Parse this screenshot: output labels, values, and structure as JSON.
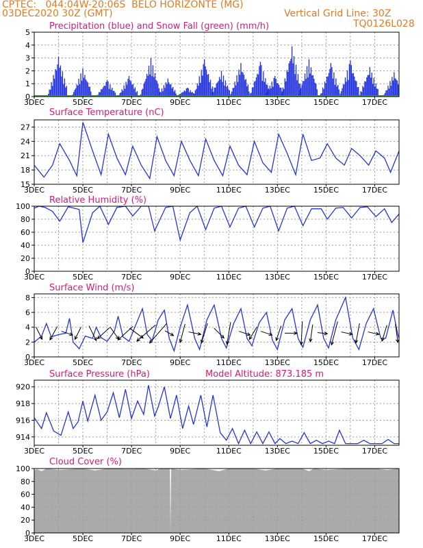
{
  "header": {
    "line1": "CPTEC:   044:04W-20:06S  BELO HORIZONTE (MG)",
    "line2": "03DEC2020 30Z (GMT)",
    "grid_note": "Vertical Grid Line: 30Z",
    "code": "TQ0126L028"
  },
  "colors": {
    "header": "#e07b1f",
    "panel_title": "#e0157a",
    "line": "#2233dd",
    "precip_bar": "#2233dd",
    "snow": "#22aa22",
    "cloud": "#aaaaaa",
    "arrow": "#000000"
  },
  "chart_data": [
    {
      "id": "precip",
      "type": "bar",
      "title": "Precipitation (blue) and Snow Fall (green) (mm/h)",
      "ylim": [
        0,
        5
      ],
      "yticks": [
        "0",
        "1",
        "2",
        "3",
        "4",
        "5"
      ],
      "grid": true,
      "x_days": [
        3,
        18
      ],
      "x_tick_labels": [
        "3DEC",
        "5DEC",
        "7DEC",
        "9DEC",
        "11DEC",
        "13DEC",
        "15DEC",
        "17DEC"
      ],
      "daily_peaks": [
        {
          "day": 4.0,
          "value": 3.1
        },
        {
          "day": 5.0,
          "value": 2.2
        },
        {
          "day": 6.0,
          "value": 1.3
        },
        {
          "day": 6.9,
          "value": 1.6
        },
        {
          "day": 7.8,
          "value": 3.0
        },
        {
          "day": 8.5,
          "value": 1.4
        },
        {
          "day": 9.3,
          "value": 0.7
        },
        {
          "day": 10.0,
          "value": 2.9
        },
        {
          "day": 10.7,
          "value": 2.0
        },
        {
          "day": 11.5,
          "value": 2.6
        },
        {
          "day": 12.3,
          "value": 2.7
        },
        {
          "day": 12.9,
          "value": 1.6
        },
        {
          "day": 13.6,
          "value": 3.9
        },
        {
          "day": 14.3,
          "value": 2.9
        },
        {
          "day": 15.2,
          "value": 2.6
        },
        {
          "day": 16.0,
          "value": 2.8
        },
        {
          "day": 16.8,
          "value": 2.3
        },
        {
          "day": 17.8,
          "value": 1.9
        }
      ],
      "snow_values": 0
    },
    {
      "id": "temperature",
      "type": "line",
      "title": "Surface Temperature (nC)",
      "ylim": [
        15,
        28.5
      ],
      "yticks": [
        "15",
        "18",
        "21",
        "24",
        "27"
      ],
      "grid": true,
      "x_days": [
        3,
        18
      ],
      "x_tick_labels": [
        "3DEC",
        "5DEC",
        "7DEC",
        "9DEC",
        "11DEC",
        "13DEC",
        "15DEC",
        "17DEC"
      ],
      "points": [
        [
          3.0,
          19.0
        ],
        [
          3.4,
          16.5
        ],
        [
          3.75,
          19.0
        ],
        [
          4.05,
          23.5
        ],
        [
          4.45,
          20.0
        ],
        [
          4.75,
          16.8
        ],
        [
          5.0,
          28.0
        ],
        [
          5.4,
          22.0
        ],
        [
          5.75,
          17.0
        ],
        [
          6.05,
          25.5
        ],
        [
          6.4,
          20.5
        ],
        [
          6.75,
          17.0
        ],
        [
          7.05,
          23.0
        ],
        [
          7.4,
          19.0
        ],
        [
          7.75,
          16.2
        ],
        [
          8.05,
          25.0
        ],
        [
          8.4,
          20.0
        ],
        [
          8.75,
          16.8
        ],
        [
          9.05,
          24.0
        ],
        [
          9.4,
          20.0
        ],
        [
          9.75,
          16.8
        ],
        [
          10.05,
          24.5
        ],
        [
          10.4,
          20.0
        ],
        [
          10.75,
          16.8
        ],
        [
          11.05,
          23.0
        ],
        [
          11.4,
          19.0
        ],
        [
          11.75,
          17.0
        ],
        [
          12.05,
          24.0
        ],
        [
          12.4,
          19.5
        ],
        [
          12.75,
          17.5
        ],
        [
          13.05,
          25.5
        ],
        [
          13.4,
          21.5
        ],
        [
          13.75,
          17.0
        ],
        [
          14.05,
          25.5
        ],
        [
          14.4,
          20.0
        ],
        [
          14.75,
          20.5
        ],
        [
          15.05,
          23.5
        ],
        [
          15.4,
          20.5
        ],
        [
          15.75,
          19.0
        ],
        [
          16.05,
          22.5
        ],
        [
          16.4,
          21.0
        ],
        [
          16.75,
          19.0
        ],
        [
          17.05,
          22.0
        ],
        [
          17.4,
          20.5
        ],
        [
          17.65,
          17.5
        ],
        [
          18.0,
          22.0
        ]
      ]
    },
    {
      "id": "humidity",
      "type": "line",
      "title": "Relative Humidity (%)",
      "ylim": [
        0,
        100
      ],
      "yticks": [
        "0",
        "20",
        "40",
        "60",
        "80",
        "100"
      ],
      "grid": true,
      "x_days": [
        3,
        18
      ],
      "x_tick_labels": [
        "3DEC",
        "5DEC",
        "7DEC",
        "9DEC",
        "11DEC",
        "13DEC",
        "15DEC",
        "17DEC"
      ],
      "points": [
        [
          3.0,
          97
        ],
        [
          3.2,
          100
        ],
        [
          3.45,
          98
        ],
        [
          3.75,
          92
        ],
        [
          4.05,
          77
        ],
        [
          4.4,
          99
        ],
        [
          4.85,
          95
        ],
        [
          5.0,
          44
        ],
        [
          5.4,
          90
        ],
        [
          5.7,
          100
        ],
        [
          6.05,
          72
        ],
        [
          6.4,
          98
        ],
        [
          6.75,
          100
        ],
        [
          7.05,
          85
        ],
        [
          7.4,
          100
        ],
        [
          7.7,
          100
        ],
        [
          7.95,
          62
        ],
        [
          8.4,
          98
        ],
        [
          8.7,
          100
        ],
        [
          9.0,
          48
        ],
        [
          9.4,
          90
        ],
        [
          9.7,
          100
        ],
        [
          10.05,
          64
        ],
        [
          10.4,
          97
        ],
        [
          10.7,
          100
        ],
        [
          11.05,
          68
        ],
        [
          11.4,
          97
        ],
        [
          11.7,
          100
        ],
        [
          12.05,
          68
        ],
        [
          12.4,
          97
        ],
        [
          12.7,
          100
        ],
        [
          13.05,
          62
        ],
        [
          13.4,
          97
        ],
        [
          13.7,
          100
        ],
        [
          14.05,
          70
        ],
        [
          14.4,
          96
        ],
        [
          14.8,
          96
        ],
        [
          15.05,
          80
        ],
        [
          15.4,
          97
        ],
        [
          15.7,
          98
        ],
        [
          16.05,
          82
        ],
        [
          16.4,
          98
        ],
        [
          16.7,
          99
        ],
        [
          17.05,
          84
        ],
        [
          17.4,
          96
        ],
        [
          17.7,
          75
        ],
        [
          18.0,
          88
        ]
      ]
    },
    {
      "id": "wind",
      "type": "line",
      "title": "Surface Wind (m/s)",
      "ylim": [
        0,
        8.5
      ],
      "yticks": [
        "0",
        "2",
        "4",
        "6",
        "8"
      ],
      "grid": true,
      "x_days": [
        3,
        18
      ],
      "x_tick_labels": [
        "3DEC",
        "5DEC",
        "7DEC",
        "9DEC",
        "11DEC",
        "13DEC",
        "15DEC",
        "17DEC"
      ],
      "points": [
        [
          3.0,
          2.0
        ],
        [
          3.3,
          2.8
        ],
        [
          3.5,
          4.5
        ],
        [
          3.7,
          2.7
        ],
        [
          4.0,
          3.0
        ],
        [
          4.3,
          3.2
        ],
        [
          4.45,
          5.2
        ],
        [
          4.6,
          2.0
        ],
        [
          4.85,
          1.1
        ],
        [
          5.1,
          2.8
        ],
        [
          5.4,
          2.5
        ],
        [
          5.55,
          4.0
        ],
        [
          5.75,
          2.6
        ],
        [
          6.0,
          2.1
        ],
        [
          6.3,
          3.5
        ],
        [
          6.45,
          5.5
        ],
        [
          6.65,
          2.7
        ],
        [
          6.9,
          2.1
        ],
        [
          7.2,
          4.5
        ],
        [
          7.45,
          6.5
        ],
        [
          7.65,
          3.0
        ],
        [
          7.85,
          2.2
        ],
        [
          8.1,
          5.0
        ],
        [
          8.35,
          6.3
        ],
        [
          8.55,
          2.5
        ],
        [
          8.75,
          0.8
        ],
        [
          9.0,
          4.0
        ],
        [
          9.3,
          7.0
        ],
        [
          9.6,
          2.5
        ],
        [
          9.8,
          1.0
        ],
        [
          10.1,
          5.0
        ],
        [
          10.4,
          7.0
        ],
        [
          10.7,
          2.5
        ],
        [
          10.9,
          1.2
        ],
        [
          11.2,
          4.5
        ],
        [
          11.5,
          6.5
        ],
        [
          11.75,
          2.5
        ],
        [
          11.95,
          1.5
        ],
        [
          12.25,
          4.6
        ],
        [
          12.55,
          6.0
        ],
        [
          12.8,
          2.2
        ],
        [
          13.0,
          1.0
        ],
        [
          13.3,
          5.0
        ],
        [
          13.6,
          6.5
        ],
        [
          13.85,
          2.5
        ],
        [
          14.05,
          1.3
        ],
        [
          14.35,
          5.0
        ],
        [
          14.65,
          7.0
        ],
        [
          14.9,
          2.5
        ],
        [
          15.1,
          1.2
        ],
        [
          15.4,
          5.0
        ],
        [
          15.8,
          8.0
        ],
        [
          16.1,
          2.5
        ],
        [
          16.35,
          1.0
        ],
        [
          16.65,
          4.5
        ],
        [
          16.95,
          6.5
        ],
        [
          17.25,
          2.5
        ],
        [
          17.45,
          2.5
        ],
        [
          17.75,
          6.3
        ],
        [
          17.95,
          3.0
        ],
        [
          18.0,
          2.5
        ]
      ],
      "arrows": [
        {
          "day": 3.2,
          "u": 0.5,
          "v": 1.0
        },
        {
          "day": 3.8,
          "u": -0.6,
          "v": 1.1
        },
        {
          "day": 4.35,
          "u": 0.9,
          "v": 0.3
        },
        {
          "day": 4.8,
          "u": -0.5,
          "v": 1.0
        },
        {
          "day": 5.4,
          "u": 0.6,
          "v": 1.2
        },
        {
          "day": 5.85,
          "u": -1.0,
          "v": 0.9
        },
        {
          "day": 6.3,
          "u": 0.7,
          "v": 1.0
        },
        {
          "day": 6.75,
          "u": -1.2,
          "v": 1.1
        },
        {
          "day": 7.2,
          "u": 1.1,
          "v": 0.8
        },
        {
          "day": 7.6,
          "u": -1.5,
          "v": 1.3
        },
        {
          "day": 8.1,
          "u": -1.4,
          "v": 1.6
        },
        {
          "day": 8.55,
          "u": 0.7,
          "v": 0.4
        },
        {
          "day": 9.1,
          "u": -0.4,
          "v": 1.5
        },
        {
          "day": 9.6,
          "u": 1.0,
          "v": 0.2
        },
        {
          "day": 10.0,
          "u": -0.5,
          "v": 1.6
        },
        {
          "day": 10.6,
          "u": 0.8,
          "v": 0.8
        },
        {
          "day": 11.0,
          "u": -0.3,
          "v": 1.8
        },
        {
          "day": 11.65,
          "u": 0.9,
          "v": 0.3
        },
        {
          "day": 12.0,
          "u": -0.6,
          "v": 1.0
        },
        {
          "day": 12.55,
          "u": 0.9,
          "v": 0.3
        },
        {
          "day": 13.05,
          "u": -0.4,
          "v": 1.2
        },
        {
          "day": 13.55,
          "u": 1.0,
          "v": 0.0
        },
        {
          "day": 14.0,
          "u": -0.1,
          "v": 1.9
        },
        {
          "day": 14.4,
          "u": -0.2,
          "v": 1.4
        },
        {
          "day": 14.85,
          "u": 0.8,
          "v": 0.1
        },
        {
          "day": 15.35,
          "u": -0.5,
          "v": 1.9
        },
        {
          "day": 15.85,
          "u": 0.9,
          "v": 0.2
        },
        {
          "day": 16.3,
          "u": -0.3,
          "v": 1.6
        },
        {
          "day": 16.95,
          "u": 0.9,
          "v": 0.2
        },
        {
          "day": 17.4,
          "u": -0.4,
          "v": 1.3
        },
        {
          "day": 17.9,
          "u": 0.2,
          "v": 1.5
        }
      ]
    },
    {
      "id": "pressure",
      "type": "line",
      "title": "Surface Pressure (hPa)",
      "subtitle": "Model Altitude: 873.185 m",
      "ylim": [
        913,
        920.8
      ],
      "yticks": [
        "914",
        "916",
        "918",
        "920"
      ],
      "grid": true,
      "x_days": [
        3,
        18
      ],
      "x_tick_labels": [
        "3DEC",
        "5DEC",
        "7DEC",
        "9DEC",
        "11DEC",
        "13DEC",
        "15DEC",
        "17DEC"
      ],
      "points": [
        [
          3.0,
          916.3
        ],
        [
          3.3,
          915.0
        ],
        [
          3.5,
          916.9
        ],
        [
          3.8,
          914.7
        ],
        [
          4.1,
          914.2
        ],
        [
          4.4,
          917.0
        ],
        [
          4.6,
          915.0
        ],
        [
          4.8,
          915.8
        ],
        [
          5.0,
          918.3
        ],
        [
          5.2,
          915.9
        ],
        [
          5.5,
          919.0
        ],
        [
          5.75,
          916.0
        ],
        [
          6.0,
          917.0
        ],
        [
          6.25,
          919.3
        ],
        [
          6.5,
          916.3
        ],
        [
          6.75,
          919.7
        ],
        [
          7.0,
          916.2
        ],
        [
          7.25,
          918.3
        ],
        [
          7.5,
          916.7
        ],
        [
          7.7,
          920.2
        ],
        [
          7.95,
          916.5
        ],
        [
          8.1,
          917.6
        ],
        [
          8.35,
          920.0
        ],
        [
          8.6,
          916.2
        ],
        [
          8.85,
          919.0
        ],
        [
          9.1,
          915.0
        ],
        [
          9.35,
          917.7
        ],
        [
          9.55,
          915.5
        ],
        [
          9.85,
          919.0
        ],
        [
          10.1,
          915.2
        ],
        [
          10.35,
          919.0
        ],
        [
          10.65,
          914.5
        ],
        [
          10.9,
          913.6
        ],
        [
          11.15,
          915.0
        ],
        [
          11.4,
          913.2
        ],
        [
          11.65,
          914.8
        ],
        [
          11.9,
          913.2
        ],
        [
          12.15,
          914.6
        ],
        [
          12.4,
          913.2
        ],
        [
          12.65,
          914.6
        ],
        [
          12.9,
          913.2
        ],
        [
          13.1,
          913.8
        ],
        [
          13.35,
          913.2
        ],
        [
          13.6,
          913.5
        ],
        [
          13.85,
          913.2
        ],
        [
          14.1,
          914.5
        ],
        [
          14.35,
          913.2
        ],
        [
          14.6,
          913.6
        ],
        [
          14.85,
          913.2
        ],
        [
          15.1,
          913.5
        ],
        [
          15.35,
          913.2
        ],
        [
          15.55,
          914.8
        ],
        [
          15.8,
          913.2
        ],
        [
          16.3,
          913.2
        ],
        [
          16.55,
          913.6
        ],
        [
          16.8,
          913.2
        ],
        [
          17.3,
          913.2
        ],
        [
          17.55,
          913.7
        ],
        [
          17.8,
          913.2
        ],
        [
          18.0,
          913.2
        ]
      ]
    },
    {
      "id": "cloud",
      "type": "area",
      "title": "Cloud Cover (%)",
      "ylim": [
        0,
        100
      ],
      "yticks": [
        "0",
        "20",
        "40",
        "60",
        "80",
        "100"
      ],
      "grid": true,
      "x_days": [
        3,
        18
      ],
      "x_tick_labels": [
        "3DEC",
        "5DEC",
        "7DEC",
        "9DEC",
        "11DEC",
        "13DEC",
        "15DEC",
        "17DEC"
      ],
      "points": [
        [
          3.0,
          97
        ],
        [
          3.1,
          99
        ],
        [
          3.3,
          96
        ],
        [
          3.5,
          100
        ],
        [
          4.0,
          98
        ],
        [
          5.0,
          100
        ],
        [
          5.5,
          97
        ],
        [
          6.0,
          100
        ],
        [
          7.0,
          99
        ],
        [
          7.5,
          100
        ],
        [
          8.0,
          97
        ],
        [
          8.2,
          100
        ],
        [
          8.58,
          100
        ],
        [
          8.6,
          0
        ],
        [
          8.63,
          100
        ],
        [
          9.0,
          98
        ],
        [
          10.0,
          100
        ],
        [
          10.6,
          96
        ],
        [
          11.0,
          100
        ],
        [
          12.0,
          100
        ],
        [
          12.5,
          97
        ],
        [
          13.0,
          100
        ],
        [
          14.0,
          100
        ],
        [
          14.3,
          96
        ],
        [
          14.5,
          100
        ],
        [
          15.0,
          98
        ],
        [
          16.0,
          100
        ],
        [
          17.0,
          100
        ],
        [
          17.5,
          98
        ],
        [
          18.0,
          100
        ]
      ]
    }
  ]
}
